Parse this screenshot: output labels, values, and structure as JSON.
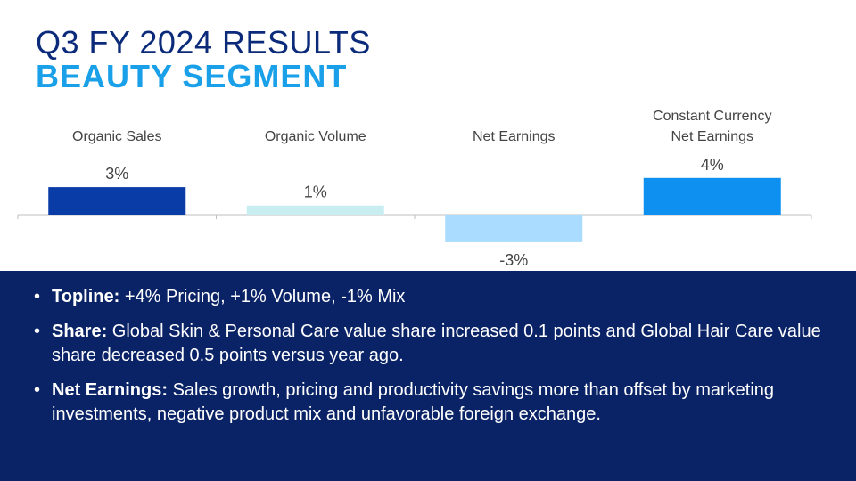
{
  "header": {
    "title": "Q3 FY 2024 RESULTS",
    "subtitle": "BEAUTY SEGMENT"
  },
  "chart_data": {
    "type": "bar",
    "categories": [
      [
        "Organic Sales"
      ],
      [
        "Organic Volume"
      ],
      [
        "Net Earnings"
      ],
      [
        "Constant Currency",
        "Net Earnings"
      ]
    ],
    "values": [
      3,
      1,
      -3,
      4
    ],
    "value_labels": [
      "3%",
      "1%",
      "-3%",
      "4%"
    ],
    "colors": [
      "#0a3ca8",
      "#c8eef2",
      "#a9dcff",
      "#0d90f0"
    ],
    "ylim": [
      -3,
      4
    ],
    "grid": false
  },
  "bullets": [
    {
      "marker": "•",
      "label": "Topline:",
      "text": " +4% Pricing, +1% Volume, -1% Mix"
    },
    {
      "marker": "•",
      "label": "Share:",
      "text": " Global Skin & Personal Care value share increased 0.1 points and Global Hair Care value share decreased 0.5 points versus year ago."
    },
    {
      "marker": "•",
      "label": "Net Earnings:",
      "text": " Sales growth, pricing and productivity savings more than offset by marketing investments, negative product mix and unfavorable foreign exchange."
    }
  ]
}
